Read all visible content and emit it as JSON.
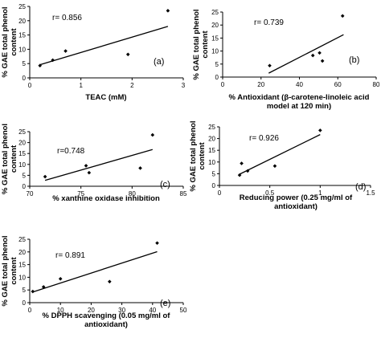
{
  "colors": {
    "ink": "#000000",
    "background": "#ffffff"
  },
  "chart_data": [
    {
      "type": "scatter",
      "panel_label": "(a)",
      "annotation": "r= 0.856",
      "xlabel": [
        "TEAC (mM)"
      ],
      "ylabel": [
        "% GAE total phenol",
        "content"
      ],
      "xlim": [
        0,
        3
      ],
      "ylim": [
        0,
        25
      ],
      "xticks": [
        0,
        1,
        2,
        3
      ],
      "yticks": [
        0,
        5,
        10,
        15,
        20,
        25
      ],
      "points": [
        [
          0.2,
          4.3
        ],
        [
          0.45,
          6.2
        ],
        [
          0.7,
          9.4
        ],
        [
          1.92,
          8.2
        ],
        [
          2.7,
          23.5
        ]
      ],
      "trendline": [
        [
          0.2,
          4.6
        ],
        [
          2.7,
          18.0
        ]
      ]
    },
    {
      "type": "scatter",
      "panel_label": "(b)",
      "annotation": "r= 0.739",
      "xlabel": [
        "% Antioxidant (β-carotene-linoleic acid",
        "model at 120 min)"
      ],
      "ylabel": [
        "% GAE total phenol",
        "content"
      ],
      "xlim": [
        0,
        80
      ],
      "ylim": [
        0,
        25
      ],
      "xticks": [
        0,
        20,
        40,
        60,
        80
      ],
      "yticks": [
        0,
        5,
        10,
        15,
        20,
        25
      ],
      "points": [
        [
          24.5,
          4.4
        ],
        [
          47,
          8.3
        ],
        [
          50.5,
          9.3
        ],
        [
          52,
          6.2
        ],
        [
          62.5,
          23.5
        ]
      ],
      "trendline": [
        [
          24,
          1.5
        ],
        [
          63,
          16.3
        ]
      ]
    },
    {
      "type": "scatter",
      "panel_label": "(c)",
      "annotation": "r=0.748",
      "xlabel": [
        "% xanthine oxidase inhibition"
      ],
      "ylabel": [
        "% GAE total phenol",
        "content"
      ],
      "xlim": [
        70,
        85
      ],
      "ylim": [
        0,
        25
      ],
      "xticks": [
        70,
        75,
        80,
        85
      ],
      "yticks": [
        0,
        5,
        10,
        15,
        20,
        25
      ],
      "points": [
        [
          71.5,
          4.4
        ],
        [
          75.5,
          9.4
        ],
        [
          75.8,
          6.2
        ],
        [
          80.8,
          8.3
        ],
        [
          82,
          23.5
        ]
      ],
      "trendline": [
        [
          71.5,
          2.7
        ],
        [
          82,
          16.8
        ]
      ]
    },
    {
      "type": "scatter",
      "panel_label": "(d)",
      "annotation": "r= 0.926",
      "xlabel": [
        "Reducing power (0.25 mg/ml of",
        "antioxidant)"
      ],
      "ylabel": [
        "% GAE total phenol",
        "content"
      ],
      "xlim": [
        0,
        1.5
      ],
      "ylim": [
        0,
        25
      ],
      "xticks": [
        0,
        0.5,
        1,
        1.5
      ],
      "yticks": [
        0,
        5,
        10,
        15,
        20,
        25
      ],
      "points": [
        [
          0.2,
          4.4
        ],
        [
          0.22,
          9.4
        ],
        [
          0.28,
          6.2
        ],
        [
          0.55,
          8.3
        ],
        [
          1.0,
          23.5
        ]
      ],
      "trendline": [
        [
          0.2,
          4.8
        ],
        [
          1.0,
          21.7
        ]
      ]
    },
    {
      "type": "scatter",
      "panel_label": "(e)",
      "annotation": "r= 0.891",
      "xlabel": [
        "% DPPH scavenging (0.05 mg/ml of",
        "antioxidant)"
      ],
      "ylabel": [
        "% GAE total phenol",
        "content"
      ],
      "xlim": [
        0,
        50
      ],
      "ylim": [
        0,
        25
      ],
      "xticks": [
        0,
        10,
        20,
        30,
        40,
        50
      ],
      "yticks": [
        0,
        5,
        10,
        15,
        20,
        25
      ],
      "points": [
        [
          1,
          4.4
        ],
        [
          4.5,
          6.2
        ],
        [
          10,
          9.4
        ],
        [
          26,
          8.3
        ],
        [
          41.5,
          23.5
        ]
      ],
      "trendline": [
        [
          1,
          4.2
        ],
        [
          41.5,
          20.1
        ]
      ]
    }
  ]
}
